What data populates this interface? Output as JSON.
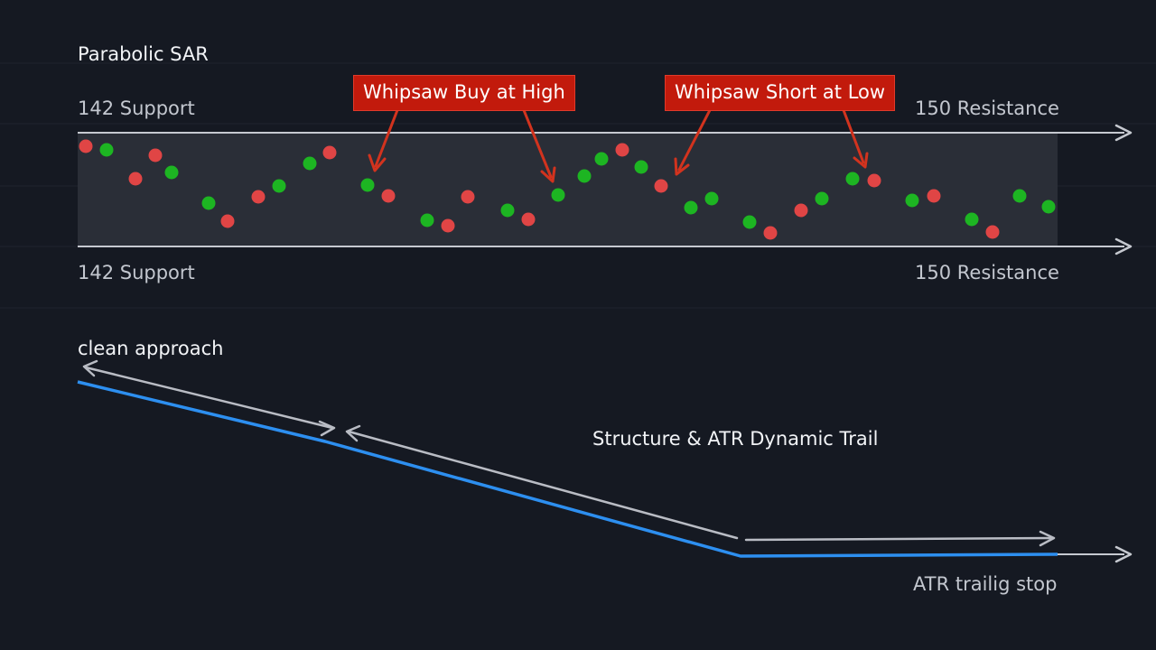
{
  "top_panel": {
    "title": "Parabolic SAR",
    "support_label_top": "142 Support",
    "resistance_label_top": "",
    "support_label_bottom": "142 Support",
    "resistance_label_bottom": "150 Resistance",
    "resistance_label_right_top": "150 Resistance",
    "callouts": [
      {
        "text": "Whipsaw Buy at High"
      },
      {
        "text": "Whipsaw Short at Low"
      }
    ],
    "colors": {
      "buy_dot": "#1db522",
      "sell_dot": "#e04545",
      "range_fill": "#2a2e37",
      "callout_bg": "#c21a0c",
      "callout_arrow": "#d2331e"
    },
    "dots": [
      {
        "side": "sell"
      },
      {
        "side": "buy"
      },
      {
        "side": "sell"
      },
      {
        "side": "sell"
      },
      {
        "side": "buy"
      },
      {
        "side": "buy"
      },
      {
        "side": "sell"
      },
      {
        "side": "sell"
      },
      {
        "side": "buy"
      },
      {
        "side": "buy"
      },
      {
        "side": "sell"
      },
      {
        "side": "buy"
      },
      {
        "side": "sell"
      },
      {
        "side": "buy"
      },
      {
        "side": "sell"
      },
      {
        "side": "sell"
      },
      {
        "side": "buy"
      },
      {
        "side": "sell"
      },
      {
        "side": "buy"
      },
      {
        "side": "buy"
      },
      {
        "side": "buy"
      },
      {
        "side": "sell"
      },
      {
        "side": "buy"
      },
      {
        "side": "sell"
      },
      {
        "side": "buy"
      },
      {
        "side": "buy"
      },
      {
        "side": "buy"
      },
      {
        "side": "sell"
      },
      {
        "side": "sell"
      },
      {
        "side": "buy"
      },
      {
        "side": "buy"
      },
      {
        "side": "sell"
      },
      {
        "side": "buy"
      },
      {
        "side": "sell"
      },
      {
        "side": "buy"
      },
      {
        "side": "sell"
      },
      {
        "side": "buy"
      },
      {
        "side": "buy"
      }
    ]
  },
  "bottom_panel": {
    "title": "clean approach",
    "subtitle": "Structure & ATR Dynamic Trail",
    "stop_label": "ATR trailig stop",
    "colors": {
      "trail_line": "#2d8ff0",
      "guide_arrow": "#b9bcc4"
    }
  }
}
